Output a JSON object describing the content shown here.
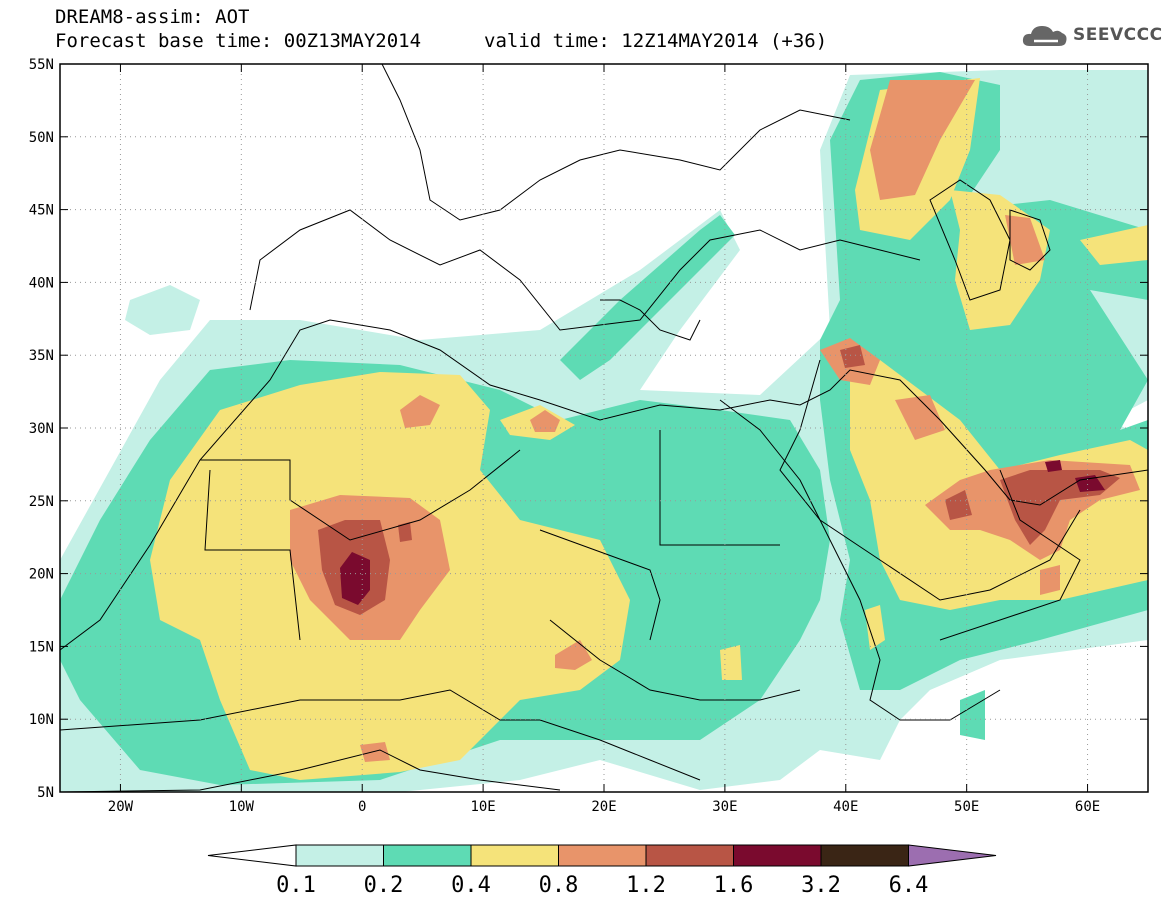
{
  "header": {
    "title": "DREAM8-assim: AOT",
    "base_time": "Forecast base time: 00Z13MAY2014",
    "valid_time": "valid time: 12Z14MAY2014 (+36)",
    "logo_text": "SEEVCCC",
    "logo_icon": "cloud-logo-icon"
  },
  "map": {
    "lon_range": [
      -25,
      65
    ],
    "lat_range": [
      5,
      55
    ],
    "lon_ticks": [
      {
        "lon": -20,
        "label": "20W"
      },
      {
        "lon": -10,
        "label": "10W"
      },
      {
        "lon": 0,
        "label": "0"
      },
      {
        "lon": 10,
        "label": "10E"
      },
      {
        "lon": 20,
        "label": "20E"
      },
      {
        "lon": 30,
        "label": "30E"
      },
      {
        "lon": 40,
        "label": "40E"
      },
      {
        "lon": 50,
        "label": "50E"
      },
      {
        "lon": 60,
        "label": "60E"
      }
    ],
    "lat_ticks": [
      {
        "lat": 55,
        "label": "55N"
      },
      {
        "lat": 50,
        "label": "50N"
      },
      {
        "lat": 45,
        "label": "45N"
      },
      {
        "lat": 40,
        "label": "40N"
      },
      {
        "lat": 35,
        "label": "35N"
      },
      {
        "lat": 30,
        "label": "30N"
      },
      {
        "lat": 25,
        "label": "25N"
      },
      {
        "lat": 20,
        "label": "20N"
      },
      {
        "lat": 15,
        "label": "15N"
      },
      {
        "lat": 10,
        "label": "10N"
      },
      {
        "lat": 5,
        "label": "5N"
      }
    ],
    "gridlines": "dotted"
  },
  "colorbar": {
    "boundaries": [
      "0.1",
      "0.2",
      "0.4",
      "0.8",
      "1.2",
      "1.6",
      "3.2",
      "6.4"
    ],
    "colors": [
      "#ffffff",
      "#c4f0e6",
      "#5edbb4",
      "#f5e37a",
      "#e8946a",
      "#b85545",
      "#7a0a2e",
      "#3a2515",
      "#9c6eb0"
    ]
  }
}
